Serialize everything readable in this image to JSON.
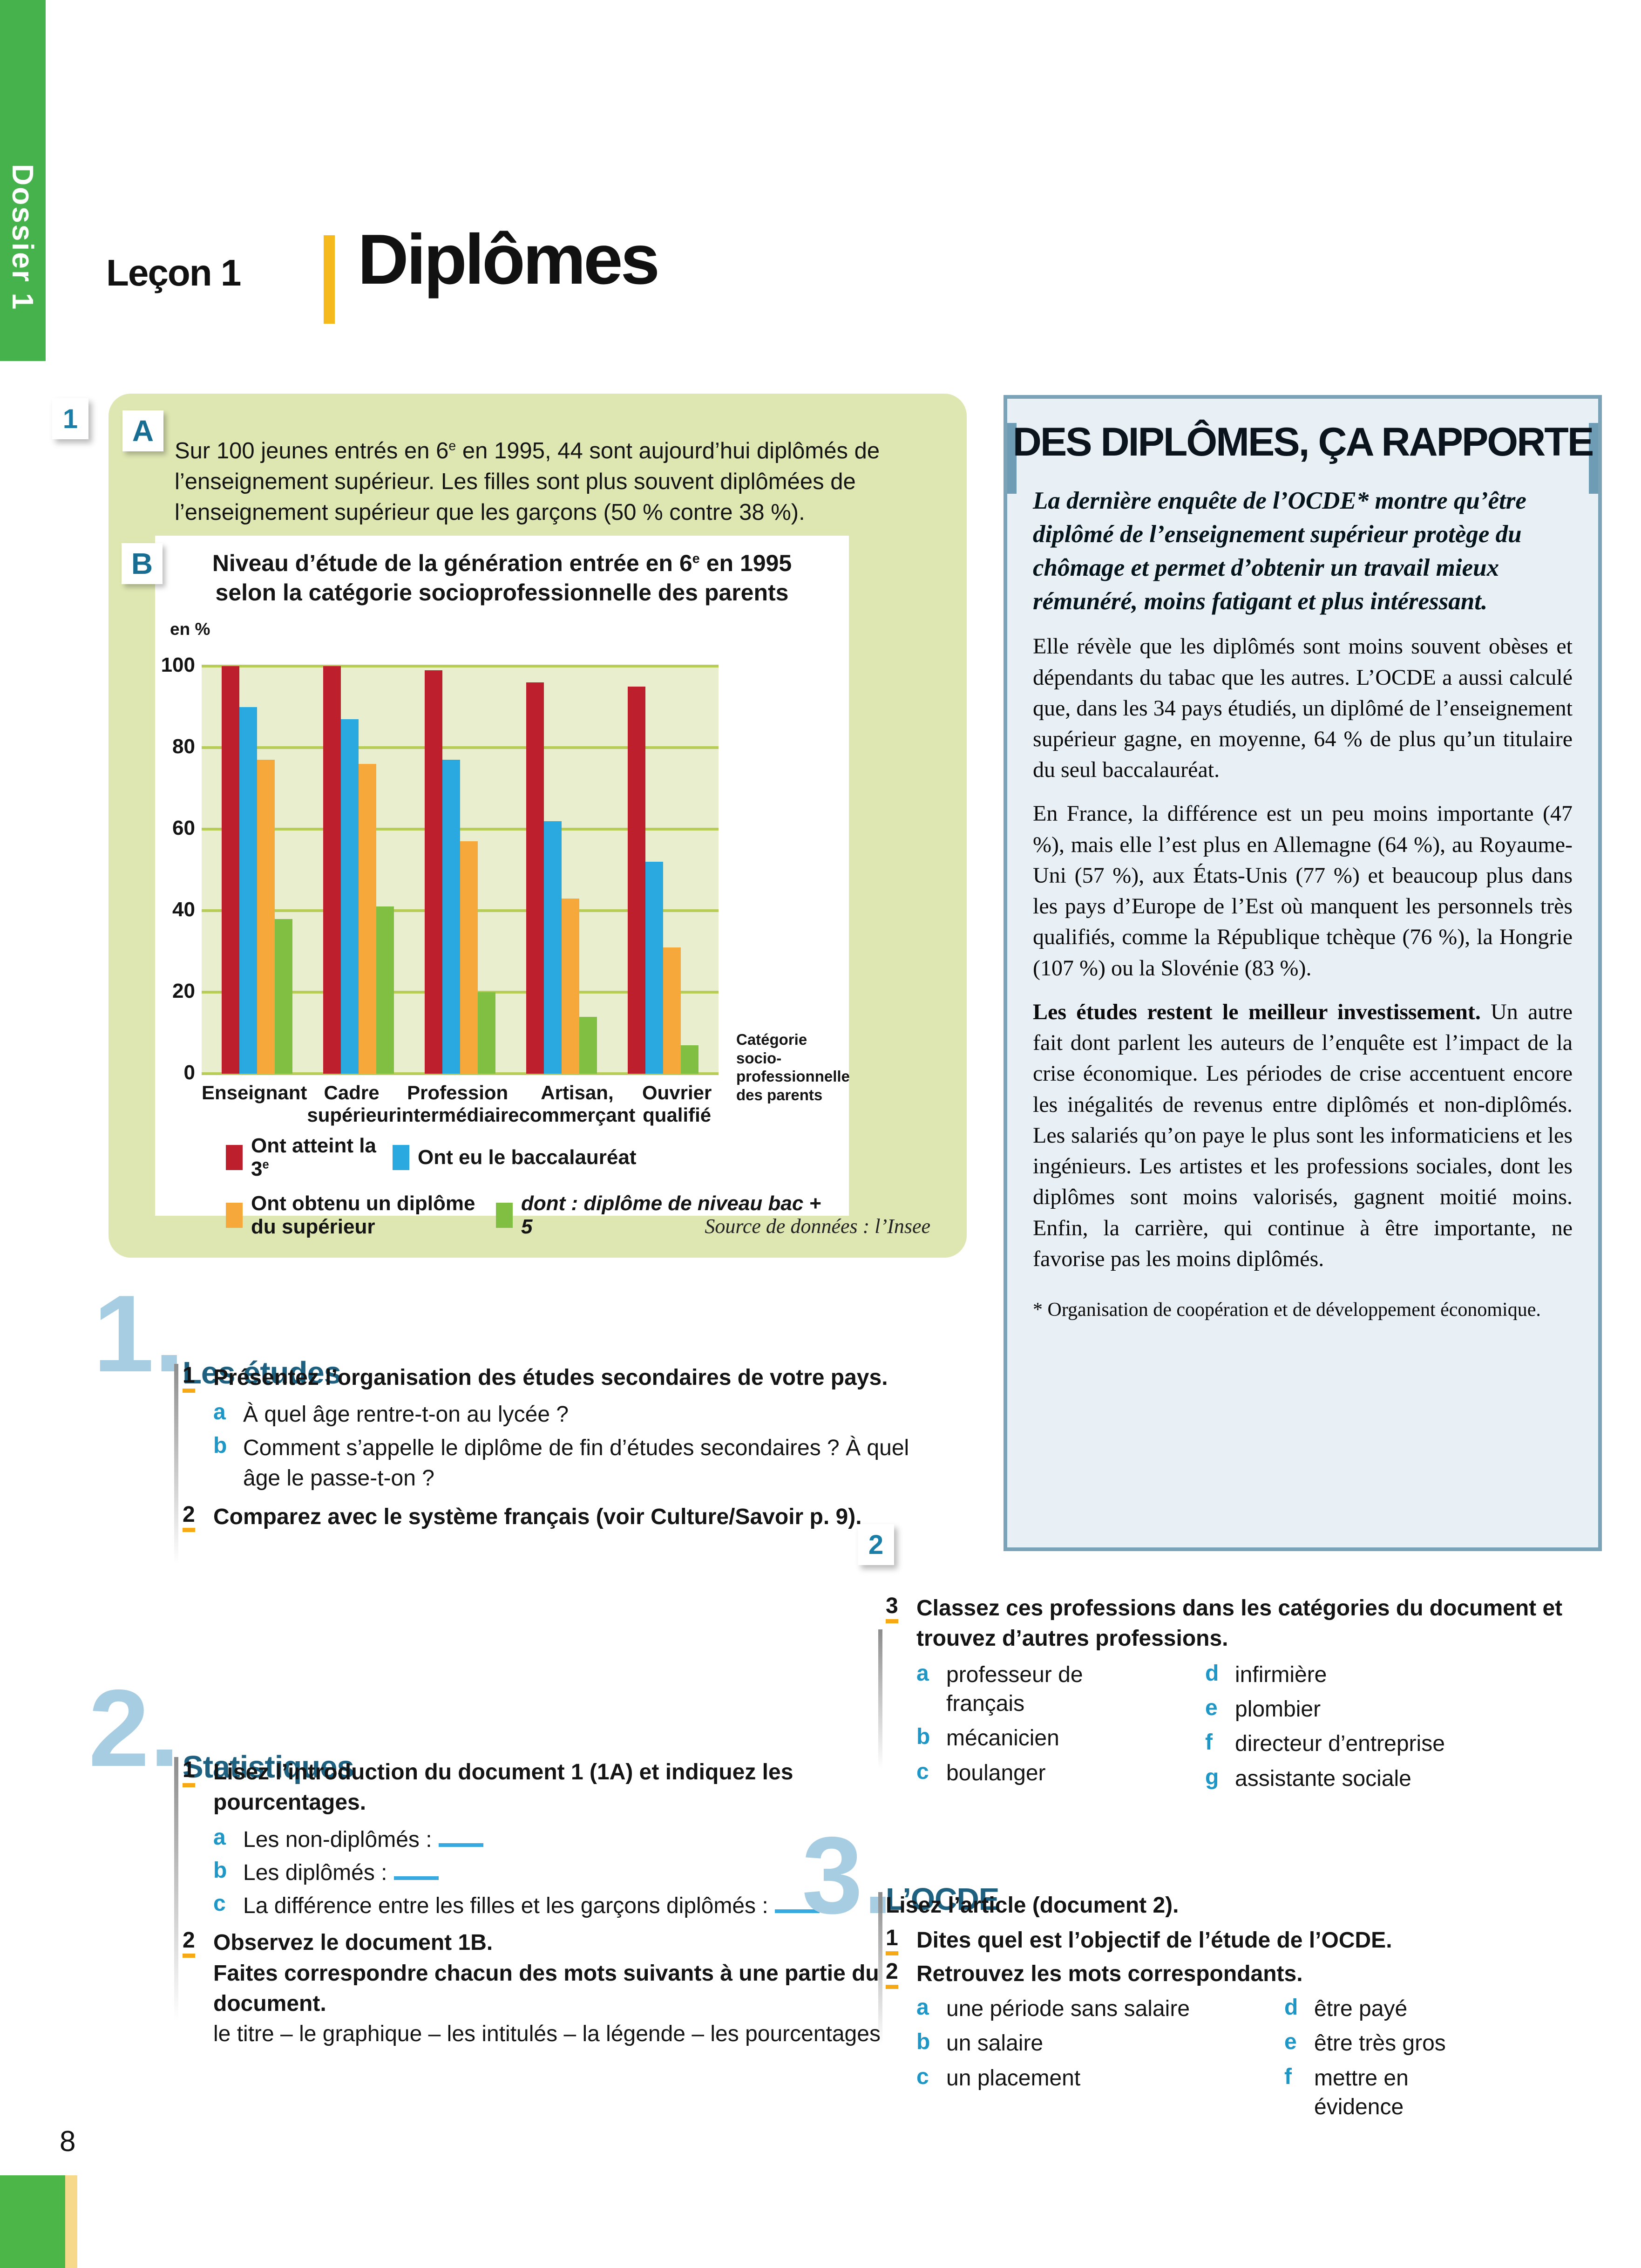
{
  "page": {
    "number": "8"
  },
  "sidebar": {
    "label": "Dossier 1"
  },
  "header": {
    "lesson": "Leçon 1",
    "title": "Diplômes"
  },
  "doc1": {
    "marker": "1",
    "labelA": "A",
    "labelB": "B",
    "intro": {
      "pre": "Sur 100 jeunes entrés en 6",
      "sup": "e",
      "post": " en 1995, 44 sont aujourd’hui diplômés de l’enseignement supérieur. Les filles sont plus souvent diplômées de l’enseignement supérieur que les garçons (50 % contre 38 %)."
    },
    "source": "Source de données : l’Insee"
  },
  "chart_data": {
    "type": "bar",
    "title": {
      "line1_pre": "Niveau d’étude de la génération entrée en 6",
      "line1_sup": "e",
      "line1_post": " en 1995",
      "line2": "selon la catégorie socioprofessionnelle des parents"
    },
    "unit_label": "en %",
    "categories": [
      "Enseignant",
      "Cadre\nsupérieur",
      "Profession\nintermédiaire",
      "Artisan,\ncommerçant",
      "Ouvrier\nqualifié"
    ],
    "series": [
      {
        "name": "Ont atteint la 3e",
        "name_pre": "Ont atteint la 3",
        "name_sup": "e",
        "color": "#be1f2d",
        "values": [
          100,
          100,
          99,
          96,
          95
        ]
      },
      {
        "name": "Ont eu le baccalauréat",
        "color": "#2aa9e0",
        "values": [
          90,
          87,
          77,
          62,
          52
        ]
      },
      {
        "name": "Ont obtenu un diplôme du supérieur",
        "color": "#f7a83b",
        "values": [
          77,
          76,
          57,
          43,
          31
        ]
      },
      {
        "name": "dont : diplôme de niveau bac + 5",
        "italic": true,
        "color": "#80bf41",
        "values": [
          38,
          41,
          20,
          14,
          7
        ]
      }
    ],
    "ylim": [
      0,
      100
    ],
    "yticks": [
      0,
      20,
      40,
      60,
      80,
      100
    ],
    "grid": true,
    "legend_position": "bottom",
    "axis_note": "Catégorie\nsocio-\nprofessionnelle\ndes parents"
  },
  "article": {
    "marker": "2",
    "title": "DES DIPLÔMES, ÇA RAPPORTE",
    "intro": "La dernière enquête de l’OCDE* montre qu’être diplômé de l’enseignement supérieur protège du chômage et permet d’obtenir un travail mieux rémunéré, moins fatigant et plus intéressant.",
    "p1": "Elle révèle que les diplômés sont moins souvent obèses et dépendants du tabac que les autres. L’OCDE a aussi calculé que, dans les 34 pays étudiés, un diplômé de l’enseignement supérieur gagne, en moyenne, 64 % de plus qu’un titulaire du seul baccalauréat.",
    "p2": "En France, la différence est un peu moins importante (47 %), mais elle l’est plus en Allemagne (64 %), au Royaume-Uni (57 %), aux États-Unis (77 %) et beaucoup plus dans les pays d’Europe de l’Est où manquent les personnels très qualifiés, comme la République tchèque (76 %), la Hongrie (107 %) ou la Slovénie (83 %).",
    "p3_lead": "Les études restent le meilleur investissement.",
    "p3_rest": " Un autre fait dont parlent les auteurs de l’enquête est l’impact de la crise économique. Les périodes de crise accentuent encore les inégalités de revenus entre diplômés et non-diplômés. Les salariés qu’on paye le plus sont les informaticiens et les ingénieurs. Les artistes et les professions sociales, dont les diplômes sont moins valorisés, gagnent moitié moins. Enfin, la carrière, qui continue à être importante, ne favorise pas les moins diplômés.",
    "footnote": "* Organisation de coopération et de développement économique."
  },
  "sections": {
    "s1": {
      "num": "1.",
      "title": "Les études",
      "item1_num": "1",
      "item1_text": "Présentez l’organisation des études secondaires de votre pays.",
      "item1a_letter": "a",
      "item1a_text": "À quel âge rentre-t-on au lycée ?",
      "item1b_letter": "b",
      "item1b_text": "Comment s’appelle le diplôme de fin d’études secondaires ? À quel âge le passe-t-on ?",
      "item2_num": "2",
      "item2_text": "Comparez avec le système français (voir Culture/Savoir p. 9)."
    },
    "s2": {
      "num": "2.",
      "title": "Statistiques",
      "item1_num": "1",
      "item1_text": "Lisez l’introduction du document 1 (1A) et indiquez les pourcentages.",
      "a_letter": "a",
      "a_text": "Les non-diplômés :",
      "b_letter": "b",
      "b_text": "Les diplômés :",
      "c_letter": "c",
      "c_text": "La différence entre les filles et les garçons diplômés :",
      "item2_num": "2",
      "item2_text": "Observez le document 1B.",
      "item2_text2": "Faites correspondre chacun des mots suivants à une partie du document.",
      "item2_list": "le titre – le graphique – les intitulés – la légende – les pourcentages"
    },
    "ex3": {
      "num": "3",
      "text": "Classez ces professions dans les catégories du document et trouvez d’autres professions.",
      "col1": [
        {
          "letter": "a",
          "label": "professeur de\nfrançais"
        },
        {
          "letter": "b",
          "label": "mécanicien"
        },
        {
          "letter": "c",
          "label": "boulanger"
        }
      ],
      "col2": [
        {
          "letter": "d",
          "label": "infirmière"
        },
        {
          "letter": "e",
          "label": "plombier"
        },
        {
          "letter": "f",
          "label": "directeur d’entreprise"
        },
        {
          "letter": "g",
          "label": "assistante sociale"
        }
      ]
    },
    "s3": {
      "num": "3.",
      "title": "L’OCDE",
      "lead": "Lisez l’article (document 2).",
      "item1_num": "1",
      "item1_text": "Dites quel est l’objectif de l’étude de l’OCDE.",
      "item2_num": "2",
      "item2_text": "Retrouvez les mots correspondants.",
      "col1": [
        {
          "letter": "a",
          "label": "une période sans salaire"
        },
        {
          "letter": "b",
          "label": "un salaire"
        },
        {
          "letter": "c",
          "label": "un placement"
        }
      ],
      "col2": [
        {
          "letter": "d",
          "label": "être payé"
        },
        {
          "letter": "e",
          "label": "être très gros"
        },
        {
          "letter": "f",
          "label": "mettre en\névidence"
        }
      ]
    }
  }
}
